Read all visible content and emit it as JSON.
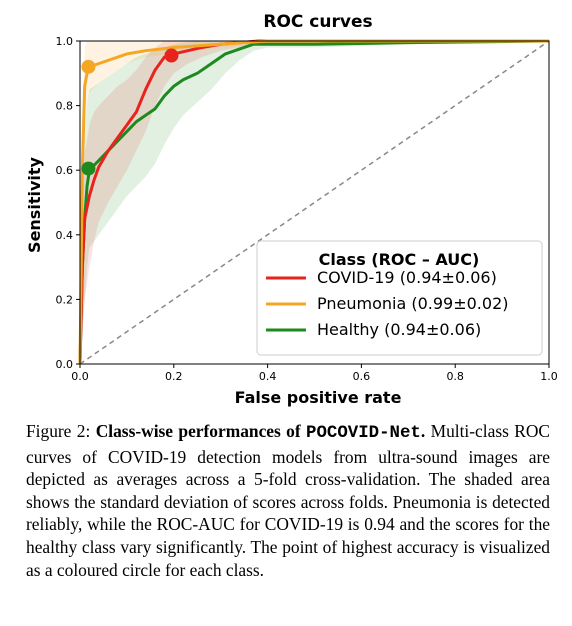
{
  "chart_data": {
    "type": "line",
    "title": "ROC curves",
    "xlabel": "False positive rate",
    "ylabel": "Sensitivity",
    "xlim": [
      0,
      1
    ],
    "ylim": [
      0,
      1
    ],
    "xticks": [
      "0.0",
      "0.2",
      "0.4",
      "0.6",
      "0.8",
      "1.0"
    ],
    "yticks": [
      "0.0",
      "0.2",
      "0.4",
      "0.6",
      "0.8",
      "1.0"
    ],
    "grid": false,
    "diagonal": "dashed-gray",
    "legend": {
      "title": "Class (ROC – AUC)",
      "placement": "lower-right"
    },
    "series": [
      {
        "name": "COVID-19 (0.94±0.06)",
        "color": "#e8231e",
        "x": [
          0,
          0.005,
          0.01,
          0.02,
          0.03,
          0.04,
          0.06,
          0.08,
          0.1,
          0.12,
          0.14,
          0.16,
          0.18,
          0.2,
          0.23,
          0.26,
          0.3,
          0.34,
          0.38,
          0.5,
          0.7,
          1.0
        ],
        "y": [
          0,
          0.3,
          0.45,
          0.52,
          0.57,
          0.61,
          0.66,
          0.7,
          0.74,
          0.78,
          0.85,
          0.91,
          0.95,
          0.96,
          0.97,
          0.98,
          0.99,
          0.995,
          1.0,
          1.0,
          1.0,
          1.0
        ],
        "lower": [
          0,
          0.1,
          0.2,
          0.3,
          0.38,
          0.44,
          0.5,
          0.55,
          0.6,
          0.66,
          0.72,
          0.8,
          0.86,
          0.9,
          0.93,
          0.95,
          0.97,
          0.98,
          0.99,
          0.99,
          0.99,
          1.0
        ],
        "upper": [
          0,
          0.5,
          0.65,
          0.74,
          0.78,
          0.8,
          0.83,
          0.86,
          0.88,
          0.91,
          0.95,
          0.98,
          1.0,
          1.0,
          1.0,
          1.0,
          1.0,
          1.0,
          1.0,
          1.0,
          1.0,
          1.0
        ],
        "marker": {
          "x": 0.195,
          "y": 0.955
        }
      },
      {
        "name": "Pneumonia (0.99±0.02)",
        "color": "#f5a623",
        "x": [
          0,
          0.005,
          0.01,
          0.015,
          0.02,
          0.04,
          0.06,
          0.08,
          0.1,
          0.14,
          0.2,
          0.3,
          0.4,
          0.6,
          1.0
        ],
        "y": [
          0,
          0.6,
          0.86,
          0.9,
          0.92,
          0.93,
          0.94,
          0.95,
          0.96,
          0.97,
          0.98,
          0.99,
          1.0,
          1.0,
          1.0
        ],
        "lower": [
          0,
          0.4,
          0.7,
          0.8,
          0.84,
          0.87,
          0.89,
          0.91,
          0.93,
          0.95,
          0.96,
          0.98,
          0.99,
          1.0,
          1.0
        ],
        "upper": [
          0,
          0.8,
          0.98,
          1.0,
          1.0,
          1.0,
          1.0,
          1.0,
          1.0,
          1.0,
          1.0,
          1.0,
          1.0,
          1.0,
          1.0
        ],
        "marker": {
          "x": 0.018,
          "y": 0.92
        }
      },
      {
        "name": "Healthy (0.94±0.06)",
        "color": "#1e8a1e",
        "x": [
          0,
          0.005,
          0.01,
          0.015,
          0.02,
          0.04,
          0.06,
          0.08,
          0.1,
          0.12,
          0.14,
          0.16,
          0.18,
          0.2,
          0.22,
          0.25,
          0.28,
          0.31,
          0.34,
          0.37,
          0.4,
          0.5,
          0.7,
          1.0
        ],
        "y": [
          0,
          0.3,
          0.45,
          0.55,
          0.6,
          0.63,
          0.66,
          0.69,
          0.72,
          0.75,
          0.77,
          0.79,
          0.83,
          0.86,
          0.88,
          0.9,
          0.93,
          0.96,
          0.975,
          0.99,
          0.99,
          0.99,
          0.995,
          1.0
        ],
        "lower": [
          0,
          0.1,
          0.2,
          0.3,
          0.36,
          0.4,
          0.44,
          0.48,
          0.52,
          0.55,
          0.58,
          0.62,
          0.68,
          0.73,
          0.77,
          0.81,
          0.85,
          0.9,
          0.94,
          0.97,
          0.98,
          0.98,
          0.99,
          1.0
        ],
        "upper": [
          0,
          0.5,
          0.7,
          0.8,
          0.85,
          0.87,
          0.89,
          0.91,
          0.93,
          0.95,
          0.96,
          0.97,
          0.98,
          0.99,
          0.995,
          1.0,
          1.0,
          1.0,
          1.0,
          1.0,
          1.0,
          1.0,
          1.0,
          1.0
        ],
        "marker": {
          "x": 0.018,
          "y": 0.605
        }
      }
    ]
  },
  "caption": {
    "label": "Figure 2: ",
    "bold_lead": "Class-wise performances of ",
    "model_name": "POCOVID-Net",
    "bold_end": ".",
    "body": " Multi-class ROC curves of COVID-19 detection models from ultra-sound images are depicted as averages across a 5-fold cross-validation. The shaded area shows the standard deviation of scores across folds. Pneumonia is detected reliably, while the ROC-AUC for COVID-19 is 0.94 and the scores for the healthy class vary significantly. The point of highest accuracy is visualized as a coloured circle for each class."
  }
}
